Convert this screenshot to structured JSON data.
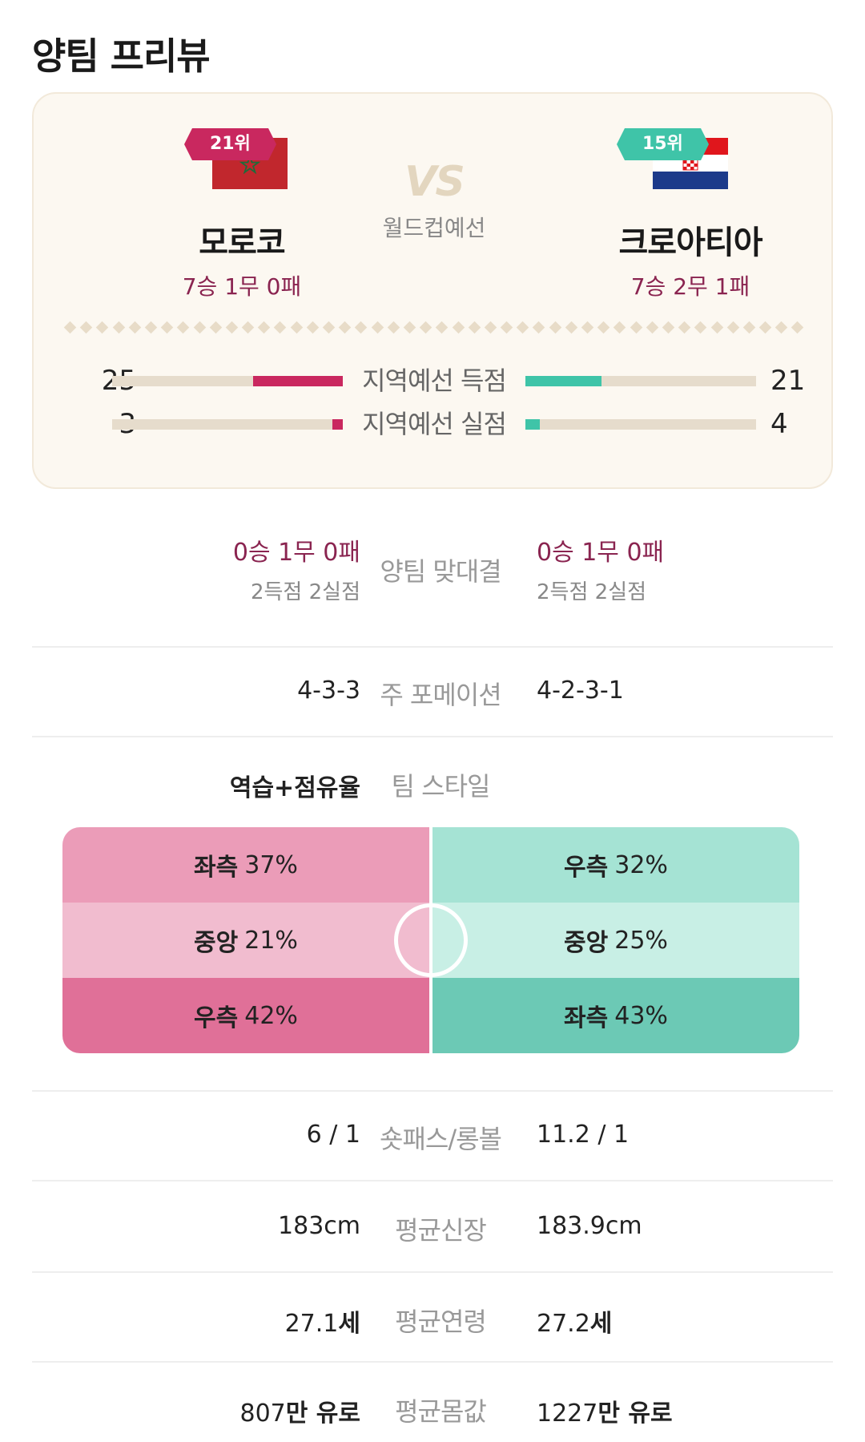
{
  "page_title": "양팀 프리뷰",
  "colors": {
    "home": "#c9285f",
    "away": "#3fc4a8",
    "record": "#8a2450"
  },
  "home": {
    "rank": "21위",
    "flag": "morocco-flag",
    "name": "모로코",
    "record": "7승 1무 0패"
  },
  "away": {
    "rank": "15위",
    "flag": "croatia-flag",
    "name": "크로아티아",
    "record": "7승 2무 1패"
  },
  "vs": {
    "mark": "VS",
    "competition": "월드컵예선"
  },
  "qualifier_stats": [
    {
      "label": "지역예선 득점",
      "home": "25",
      "away": "21",
      "home_value": 25,
      "away_value": 21,
      "max": 64
    },
    {
      "label": "지역예선 실점",
      "home": "3",
      "away": "4",
      "home_value": 3,
      "away_value": 4,
      "max": 64
    }
  ],
  "head_to_head": {
    "label": "양팀 맞대결",
    "home_record": "0승 1무 0패",
    "home_goals": "2득점 2실점",
    "away_record": "0승 1무 0패",
    "away_goals": "2득점 2실점"
  },
  "formation": {
    "label": "주 포메이션",
    "home": "4-3-3",
    "away": "4-2-3-1"
  },
  "team_style": {
    "label": "팀 스타일",
    "home": "역습+점유율",
    "away": ""
  },
  "attack_zones": {
    "home": [
      {
        "zone": "좌측",
        "pct": "37%"
      },
      {
        "zone": "중앙",
        "pct": "21%"
      },
      {
        "zone": "우측",
        "pct": "42%"
      }
    ],
    "away": [
      {
        "zone": "우측",
        "pct": "32%"
      },
      {
        "zone": "중앙",
        "pct": "25%"
      },
      {
        "zone": "좌측",
        "pct": "43%"
      }
    ]
  },
  "shotpass": {
    "label": "숏패스/롱볼",
    "home": "6 / 1",
    "away": "11.2 / 1"
  },
  "height": {
    "label": "평균신장",
    "home": "183cm",
    "away": "183.9cm"
  },
  "age": {
    "label": "평균연령",
    "home_num": "27.1",
    "home_unit": "세",
    "away_num": "27.2",
    "away_unit": "세"
  },
  "value": {
    "label": "평균몸값",
    "home_num": "807",
    "home_unit": "만 유로",
    "away_num": "1227",
    "away_unit": "만 유로"
  }
}
